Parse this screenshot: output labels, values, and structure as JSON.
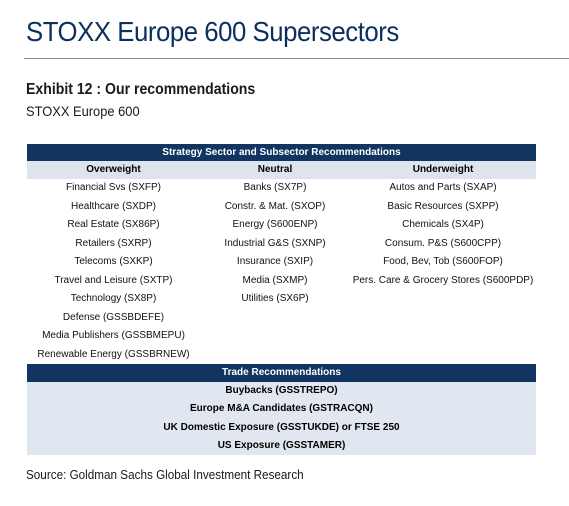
{
  "page_title": "STOXX Europe 600 Supersectors",
  "exhibit": {
    "title": "Exhibit 12 : Our recommendations",
    "subtitle": "STOXX Europe 600"
  },
  "table": {
    "header": "Strategy Sector and Subsector Recommendations",
    "columns": [
      "Overweight",
      "Neutral",
      "Underweight"
    ],
    "rows": [
      [
        "Financial Svs (SXFP)",
        "Banks (SX7P)",
        "Autos and Parts (SXAP)"
      ],
      [
        "Healthcare (SXDP)",
        "Constr. & Mat. (SXOP)",
        "Basic Resources (SXPP)"
      ],
      [
        "Real Estate (SX86P)",
        "Energy (S600ENP)",
        "Chemicals (SX4P)"
      ],
      [
        "Retailers (SXRP)",
        "Industrial G&S (SXNP)",
        "Consum. P&S (S600CPP)"
      ],
      [
        "Telecoms (SXKP)",
        "Insurance (SXIP)",
        "Food, Bev, Tob (S600FOP)"
      ],
      [
        "Travel and Leisure (SXTP)",
        "Media (SXMP)",
        "Pers. Care & Grocery Stores (S600PDP)"
      ],
      [
        "Technology (SX8P)",
        "Utilities (SX6P)",
        ""
      ],
      [
        "Defense (GSSBDEFE)",
        "",
        ""
      ],
      [
        "Media Publishers (GSSBMEPU)",
        "",
        ""
      ],
      [
        "Renewable Energy (GSSBRNEW)",
        "",
        ""
      ]
    ],
    "trade_header": "Trade Recommendations",
    "trades": [
      "Buybacks (GSSTREPO)",
      "Europe M&A Candidates (GSTRACQN)",
      "UK Domestic Exposure (GSSTUKDE) or FTSE 250",
      "US Exposure (GSSTAMER)"
    ]
  },
  "source": "Source: Goldman Sachs Global Investment Research",
  "colors": {
    "header_navy": "#123460",
    "title_blue": "#0c2f5e",
    "light_band": "#e1e7f0"
  }
}
